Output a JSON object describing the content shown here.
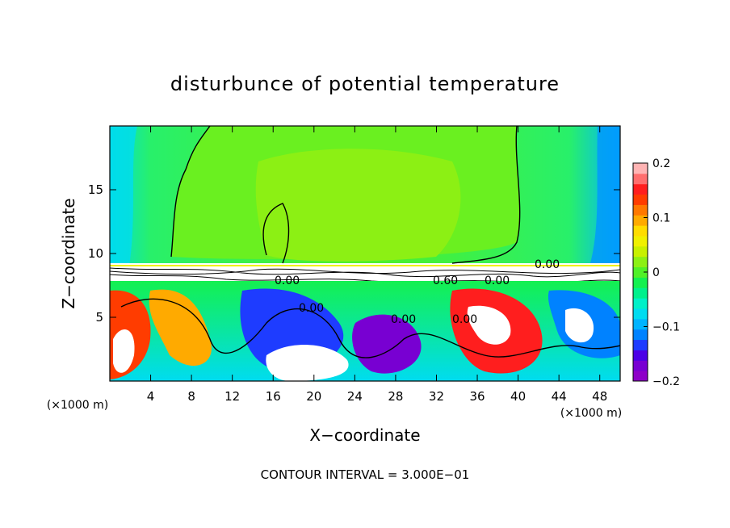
{
  "chart_data": {
    "type": "heatmap",
    "title": "disturbunce of potential temperature",
    "xlabel": "X−coordinate",
    "ylabel": "Z−coordinate",
    "x_unit_left": "(×1000 m)",
    "x_unit_right": "(×1000 m)",
    "xlim": [
      0,
      50
    ],
    "ylim": [
      0,
      20
    ],
    "x_ticks": [
      4,
      8,
      12,
      16,
      20,
      24,
      28,
      32,
      36,
      40,
      44,
      48
    ],
    "x_tick_labels": [
      "4",
      "8",
      "12",
      "16",
      "20",
      "24",
      "28",
      "32",
      "36",
      "40",
      "44",
      "48"
    ],
    "y_ticks": [
      5,
      10,
      15
    ],
    "y_tick_labels": [
      "5",
      "10",
      "15"
    ],
    "colorbar": {
      "range": [
        -0.2,
        0.2
      ],
      "ticks": [
        0.2,
        0.1,
        0,
        -0.1,
        -0.2
      ],
      "tick_labels": [
        "0.2",
        "0.1",
        "0",
        "−0.1",
        "−0.2"
      ],
      "colors": [
        "#8e00c8",
        "#7800d2",
        "#4b00e6",
        "#1e3cff",
        "#0082ff",
        "#00b4ff",
        "#00dcf0",
        "#00f0c8",
        "#00f08c",
        "#14f050",
        "#50f028",
        "#8cf014",
        "#c8f000",
        "#f0f000",
        "#ffdc00",
        "#ffaa00",
        "#ff7800",
        "#ff3c00",
        "#ff1e1e",
        "#ff6e6e",
        "#ffb4b4"
      ]
    },
    "contour_labels": [
      "0.00",
      "0.00",
      "0.00",
      "0.00",
      "0.60",
      "0.00",
      "0.00"
    ],
    "footer": "CONTOUR INTERVAL = 3.000E−01"
  }
}
